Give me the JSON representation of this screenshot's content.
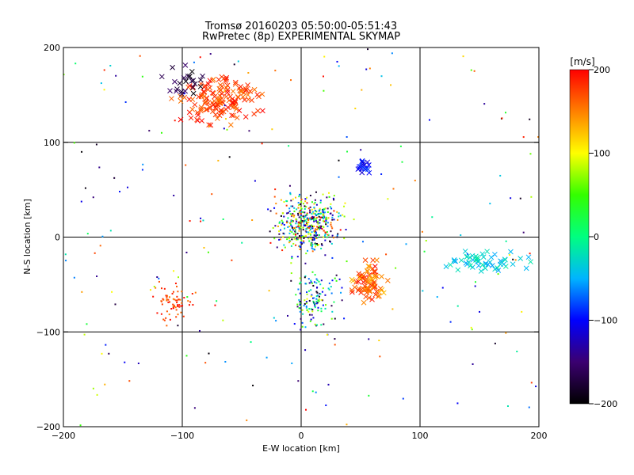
{
  "chart_data": {
    "type": "scatter",
    "title": "Tromsø 20160203 05:50:00-05:51:43",
    "subtitle": "RwPretec (8p) EXPERIMENTAL SKYMAP",
    "xlabel": "E-W location [km]",
    "ylabel": "N-S location [km]",
    "xlim": [
      -200,
      200
    ],
    "ylim": [
      -200,
      200
    ],
    "xticks": [
      -200,
      -100,
      0,
      100,
      200
    ],
    "yticks": [
      -200,
      -100,
      0,
      100,
      200
    ],
    "grid": true,
    "colorbar": {
      "label": "[m/s]",
      "range": [
        -200,
        200
      ],
      "ticks": [
        200,
        100,
        0,
        -100,
        -200
      ],
      "colors": [
        "#000000",
        "#3b0070",
        "#0000ff",
        "#00b4ff",
        "#00ff80",
        "#33ff00",
        "#ffff00",
        "#ff8000",
        "#ff0000"
      ]
    },
    "clusters": [
      {
        "name": "northwest arc",
        "marker": "x",
        "value_range": [
          150,
          200
        ],
        "x_range": [
          -115,
          -20
        ],
        "y_range": [
          110,
          180
        ],
        "count": 150
      },
      {
        "name": "northwest dark",
        "marker": "x",
        "value_range": [
          -200,
          -150
        ],
        "x_range": [
          -120,
          -70
        ],
        "y_range": [
          140,
          185
        ],
        "count": 25
      },
      {
        "name": "central dense",
        "marker": "dot",
        "value_range": [
          -200,
          200
        ],
        "x_range": [
          -35,
          45
        ],
        "y_range": [
          -30,
          60
        ],
        "count": 450
      },
      {
        "name": "central stream south",
        "marker": "dot",
        "value_range": [
          -200,
          100
        ],
        "x_range": [
          -20,
          40
        ],
        "y_range": [
          -110,
          -20
        ],
        "count": 130
      },
      {
        "name": "east cluster",
        "marker": "x",
        "value_range": [
          -60,
          -10
        ],
        "x_range": [
          110,
          200
        ],
        "y_range": [
          -40,
          -10
        ],
        "count": 55
      },
      {
        "name": "southeast red",
        "marker": "x",
        "value_range": [
          120,
          200
        ],
        "x_range": [
          40,
          75
        ],
        "y_range": [
          -80,
          -15
        ],
        "count": 80
      },
      {
        "name": "southwest red",
        "marker": "dot",
        "value_range": [
          150,
          200
        ],
        "x_range": [
          -130,
          -85
        ],
        "y_range": [
          -100,
          -40
        ],
        "count": 70
      },
      {
        "name": "blue blob",
        "marker": "x",
        "value_range": [
          -120,
          -80
        ],
        "x_range": [
          45,
          60
        ],
        "y_range": [
          65,
          85
        ],
        "count": 18
      },
      {
        "name": "scatter",
        "marker": "dot",
        "value_range": [
          -200,
          200
        ],
        "x_range": [
          -200,
          200
        ],
        "y_range": [
          -200,
          200
        ],
        "count": 220
      }
    ]
  }
}
